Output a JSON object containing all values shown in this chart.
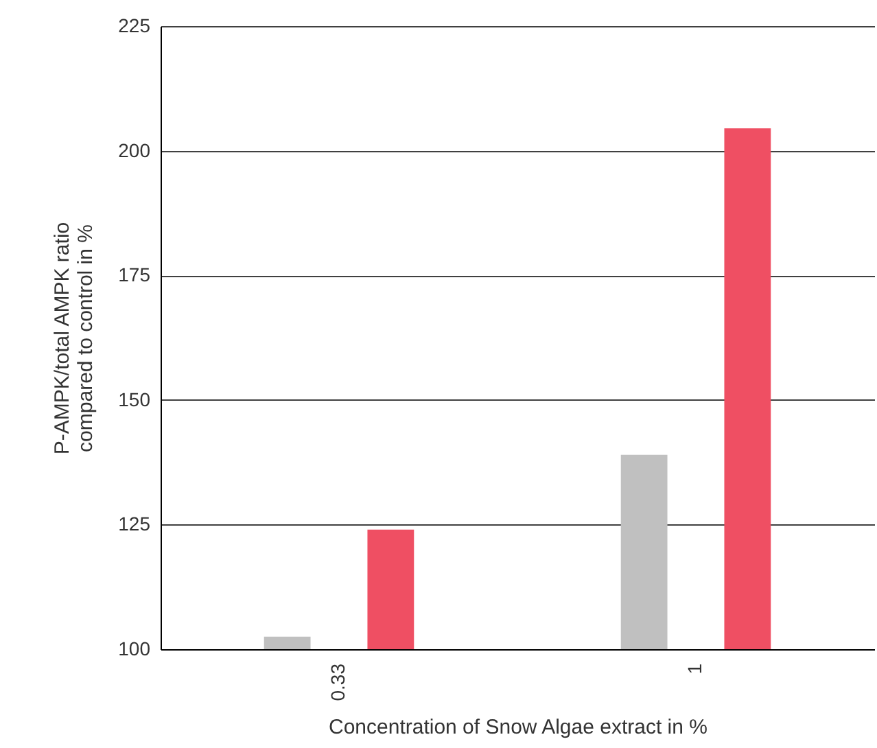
{
  "chart_data": {
    "type": "bar",
    "xlabel": "Concentration of Snow Algae extract in %",
    "ylabel": "P-AMPK/total AMPK ratio\ncompared to control in %",
    "categories": [
      "0.33",
      "1"
    ],
    "series": [
      {
        "color": "#c0c0c0",
        "values": [
          102.5,
          139
        ]
      },
      {
        "color": "#ef4f63",
        "values": [
          124,
          204.5
        ]
      }
    ],
    "ylim": [
      100,
      225
    ],
    "yticks": [
      100,
      125,
      150,
      175,
      200,
      225
    ],
    "grid": "y"
  }
}
